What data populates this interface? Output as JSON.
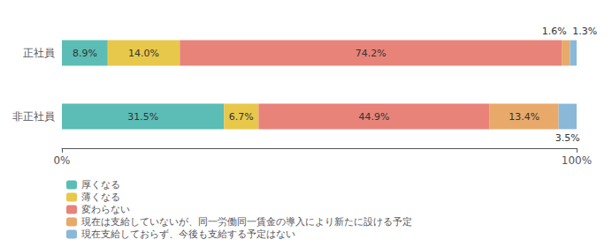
{
  "chart_data": {
    "type": "bar",
    "orientation": "horizontal",
    "stacked": true,
    "categories": [
      "正社員",
      "非正社員"
    ],
    "series": [
      {
        "name": "厚くなる",
        "color": "#5BBDB5",
        "values": [
          8.9,
          31.5
        ],
        "value_labels": [
          "8.9%",
          "31.5%"
        ]
      },
      {
        "name": "薄くなる",
        "color": "#E8C84A",
        "values": [
          14.0,
          6.7
        ],
        "value_labels": [
          "14.0%",
          "6.7%"
        ]
      },
      {
        "name": "変わらない",
        "color": "#E8837A",
        "values": [
          74.2,
          44.9
        ],
        "value_labels": [
          "74.2%",
          "44.9%"
        ]
      },
      {
        "name": "現在は支給していないが、同一労働同一賃金の導入により新たに設ける予定",
        "color": "#E8A96A",
        "values": [
          1.6,
          13.4
        ],
        "value_labels": [
          "1.6%",
          "13.4%"
        ]
      },
      {
        "name": "現在支給しておらず、今後も支給する予定はない",
        "color": "#8AB8D8",
        "values": [
          1.3,
          3.5
        ],
        "value_labels": [
          "1.3%",
          "3.5%"
        ]
      }
    ],
    "xlim": [
      0,
      100
    ],
    "xticks": [
      {
        "value": 0,
        "label": "0%"
      },
      {
        "value": 100,
        "label": "100%"
      }
    ],
    "data_labels": true,
    "grid": false,
    "legend": "bottom"
  }
}
